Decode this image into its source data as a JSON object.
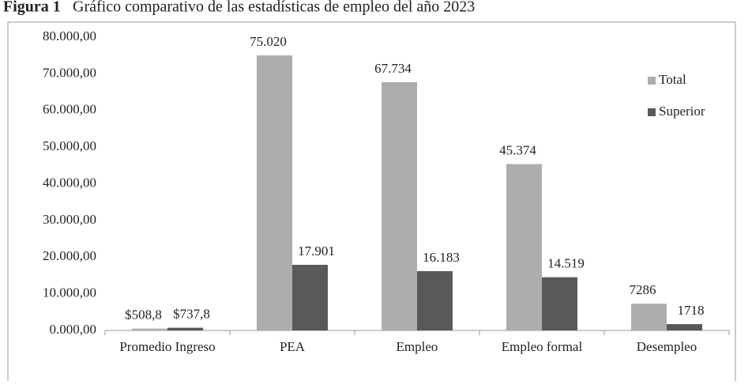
{
  "chart_data": {
    "type": "bar",
    "figure_label": "Figura 1",
    "title": "Gráfico comparativo de las estadísticas de empleo del año 2023",
    "categories": [
      "Promedio Ingreso",
      "PEA",
      "Empleo",
      "Empleo formal",
      "Desempleo"
    ],
    "series": [
      {
        "name": "Total",
        "color": "#adadad",
        "values": [
          508.8,
          75020,
          67734,
          45374,
          7286
        ],
        "value_labels": [
          "$508,8",
          "75.020",
          "67.734",
          "45.374",
          "7286"
        ]
      },
      {
        "name": "Superior",
        "color": "#595959",
        "values": [
          737.8,
          17901,
          16183,
          14519,
          1718
        ],
        "value_labels": [
          "$737,8",
          "17.901",
          "16.183",
          "14.519",
          "1718"
        ]
      }
    ],
    "ylim": [
      0,
      80000
    ],
    "yticks": [
      {
        "value": 0,
        "label": "0.000,00"
      },
      {
        "value": 10000,
        "label": "10.000,00"
      },
      {
        "value": 20000,
        "label": "20.000,00"
      },
      {
        "value": 30000,
        "label": "30.000,00"
      },
      {
        "value": 40000,
        "label": "40.000,00"
      },
      {
        "value": 50000,
        "label": "50.000,00"
      },
      {
        "value": 60000,
        "label": "60.000,00"
      },
      {
        "value": 70000,
        "label": "70.000,00"
      },
      {
        "value": 80000,
        "label": "80.000,00"
      }
    ],
    "grid": false,
    "legend": "right"
  }
}
